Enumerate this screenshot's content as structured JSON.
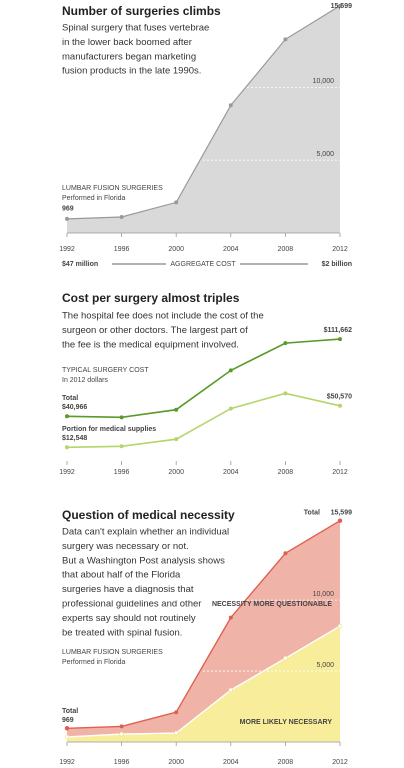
{
  "chart_data": [
    {
      "type": "area",
      "title": "Number of surgeries climbs",
      "subtitle": [
        "Spinal surgery that fuses vertebrae",
        "in the lower back boomed after",
        "manufacturers began marketing",
        "fusion products in the late 1990s."
      ],
      "annotation": [
        "LUMBAR FUSION SURGERIES",
        "Performed in Florida"
      ],
      "x": [
        1992,
        1996,
        2000,
        2004,
        2008,
        2012
      ],
      "values": [
        969,
        1100,
        2100,
        8770,
        13300,
        15599
      ],
      "value_labels": [
        "969",
        null,
        null,
        null,
        null,
        "15,599"
      ],
      "color": "#d9d9d9",
      "line_color": "#999999",
      "xlim": [
        1992,
        2012
      ],
      "xticks": [
        1992,
        1996,
        2000,
        2004,
        2008,
        2012
      ],
      "ylim": [
        0,
        16000
      ],
      "yticks": [
        {
          "value": 5000,
          "label": "5,000"
        },
        {
          "value": 10000,
          "label": "10,000"
        }
      ],
      "grid": true,
      "cost": {
        "start": "$47 million",
        "label": "AGGREGATE COST",
        "end": "$2 billion"
      }
    },
    {
      "type": "line",
      "title": "Cost per surgery almost triples",
      "subtitle": [
        "The hospital fee does not include the cost of the",
        "surgeon or other doctors. The largest part of",
        "the fee is the medical equipment involved."
      ],
      "annotation": [
        "TYPICAL SURGERY COST",
        "In 2012 dollars"
      ],
      "x": [
        1992,
        1996,
        2000,
        2004,
        2008,
        2012
      ],
      "series": [
        {
          "name": "Total",
          "color": "#5a9a2a",
          "values": [
            40966,
            40000,
            47000,
            83000,
            108000,
            111662
          ],
          "value_labels": [
            "$40,966",
            null,
            null,
            null,
            null,
            "$111,662"
          ]
        },
        {
          "name": "Portion for medical supplies",
          "color": "#b5d56a",
          "values": [
            12548,
            13500,
            20000,
            48000,
            62000,
            50570
          ],
          "value_labels": [
            "$12,548",
            null,
            null,
            null,
            null,
            "$50,570"
          ]
        }
      ],
      "xlim": [
        1992,
        2012
      ],
      "xticks": [
        1992,
        1996,
        2000,
        2004,
        2008,
        2012
      ],
      "ylim": [
        0,
        120000
      ]
    },
    {
      "type": "stacked_area",
      "title": "Question of medical necessity",
      "subtitle": [
        "Data can't explain whether an individual",
        "surgery was necessary or not.",
        "But a Washington Post analysis shows",
        "that about half of the Florida",
        "surgeries have a diagnosis that",
        "professional guidelines and other",
        "experts say should not routinely",
        "be treated with spinal fusion."
      ],
      "annotation": [
        "LUMBAR FUSION SURGERIES",
        "Performed in Florida"
      ],
      "x": [
        1992,
        1996,
        2000,
        2004,
        2008,
        2012
      ],
      "series": [
        {
          "name": "MORE LIKELY NECESSARY",
          "color": "#f7ed9a",
          "line_color": "#ffffff",
          "values": [
            350,
            560,
            630,
            3660,
            5900,
            8170
          ]
        },
        {
          "name": "NECESSITY MORE QUESTIONABLE",
          "color": "#f0b3a8",
          "line_color": "#e06050",
          "values": [
            619,
            540,
            1470,
            5110,
            7400,
            7429
          ]
        }
      ],
      "total_label": "Total",
      "totals": [
        969,
        {
          "value": 15599,
          "label": "15,599"
        }
      ],
      "totals_x": [
        1992,
        2012
      ],
      "xlim": [
        1992,
        2012
      ],
      "xticks": [
        1992,
        1996,
        2000,
        2004,
        2008,
        2012
      ],
      "ylim": [
        0,
        16000
      ],
      "yticks": [
        {
          "value": 5000,
          "label": "5,000"
        },
        {
          "value": 10000,
          "label": "10,000"
        }
      ],
      "grid": true
    }
  ]
}
